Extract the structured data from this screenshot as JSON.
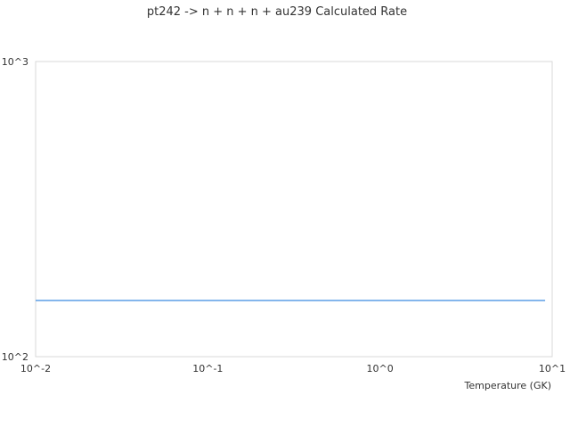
{
  "chart_data": {
    "type": "line",
    "title": "pt242 -> n + n + n + au239 Calculated Rate",
    "xlabel": "Temperature (GK)",
    "ylabel": "",
    "xscale": "log",
    "yscale": "log",
    "xlim": [
      0.01,
      10
    ],
    "ylim": [
      100,
      1000
    ],
    "xticks": [
      {
        "value": 0.01,
        "label": "10^-2"
      },
      {
        "value": 0.1,
        "label": "10^-1"
      },
      {
        "value": 1,
        "label": "10^0"
      },
      {
        "value": 10,
        "label": "10^1"
      }
    ],
    "yticks": [
      {
        "value": 100,
        "label": "10^2"
      },
      {
        "value": 1000,
        "label": "10^3"
      }
    ],
    "grid": false,
    "series": [
      {
        "color": "#5b9ee6",
        "x": [
          0.01,
          9.1
        ],
        "y": [
          155,
          155
        ]
      }
    ],
    "colors": {
      "axis": "#d9d9d9",
      "text": "#333333"
    }
  }
}
